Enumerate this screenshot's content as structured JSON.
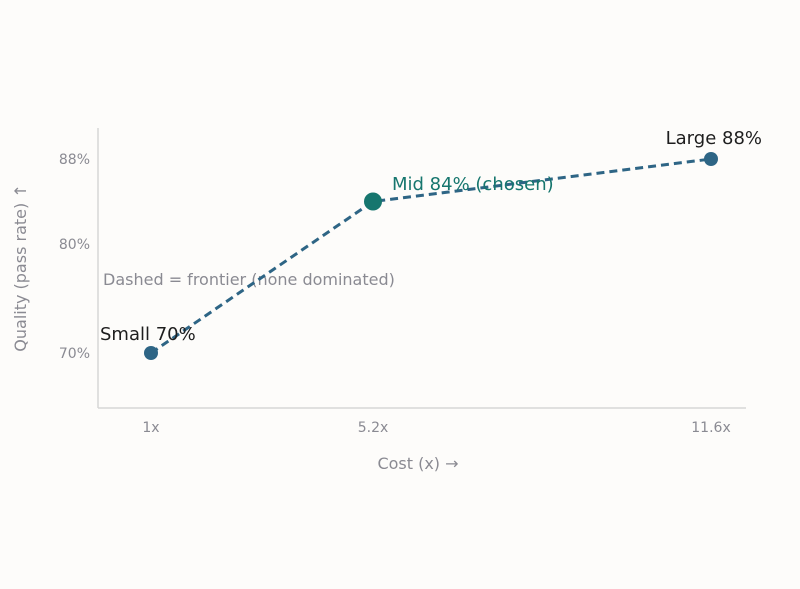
{
  "chart_data": {
    "type": "line",
    "xlabel": "Cost (x) →",
    "ylabel": "Quality (pass rate) ↑",
    "x_ticks": [
      "1x",
      "5.2x",
      "11.6x"
    ],
    "y_ticks": [
      "70%",
      "80%",
      "88%"
    ],
    "annotation": "Dashed = frontier (none dominated)",
    "grid": false,
    "series": [
      {
        "points": [
          {
            "x": 1,
            "y": 70,
            "label": "Small 70%",
            "highlight": false
          },
          {
            "x": 5.2,
            "y": 84,
            "label": "Mid 84% (chosen)",
            "highlight": true
          },
          {
            "x": 11.6,
            "y": 88,
            "label": "Large 88%",
            "highlight": false
          }
        ]
      }
    ]
  },
  "colors": {
    "line": "#2e6585",
    "point": "#2e6585",
    "chosen": "#16766e",
    "axis": "#d6d6d6",
    "text_muted": "#8a8a92",
    "text_dark": "#1e1e1e"
  }
}
